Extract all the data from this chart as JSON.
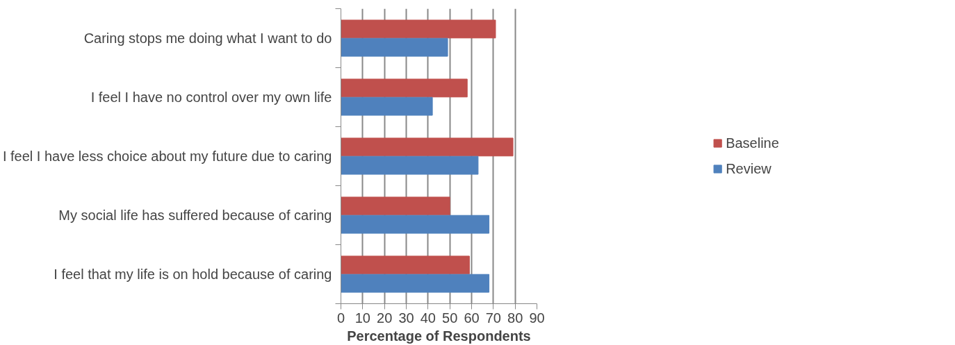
{
  "chart_data": {
    "type": "bar",
    "orientation": "horizontal",
    "xlabel": "Percentage of Respondents",
    "categories": [
      "Caring stops me doing what I want to do",
      "I feel I have no control over my own life",
      "I feel I have less choice about my future due to caring",
      "My social life has suffered because of caring",
      "I feel that my life is on hold because of caring"
    ],
    "series": [
      {
        "name": "Baseline",
        "color": "#c0504d",
        "values": [
          71,
          58,
          79,
          50,
          59
        ]
      },
      {
        "name": "Review",
        "color": "#4f81bd",
        "values": [
          49,
          42,
          63,
          68,
          68
        ]
      }
    ],
    "xlim": [
      0,
      90
    ],
    "xticks": [
      0,
      10,
      20,
      30,
      40,
      50,
      60,
      70,
      80,
      90
    ],
    "grid": "x",
    "legend": "right"
  }
}
